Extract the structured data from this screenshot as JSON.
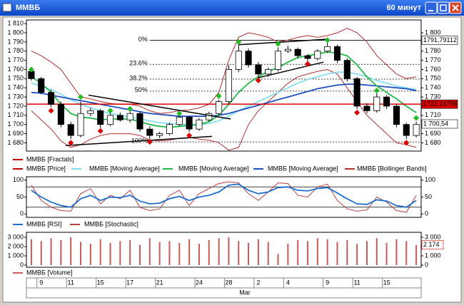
{
  "window": {
    "title": "ММВБ",
    "timeframe": "60 минут"
  },
  "chart_data": [
    {
      "type": "candlestick",
      "categories": [
        null,
        "9",
        null,
        null,
        "11",
        null,
        null,
        "15",
        null,
        null,
        "17",
        null,
        null,
        "21",
        null,
        null,
        null,
        "24",
        null,
        null,
        "28",
        null,
        null,
        "2",
        null,
        null,
        "4",
        null,
        null,
        null,
        "9",
        null,
        null,
        "11",
        null,
        null,
        "15",
        null,
        null,
        null
      ],
      "month_label": "Mar",
      "ylim": [
        1671,
        1814
      ],
      "yticks": [
        {
          "value": 1810,
          "label": "1 810"
        },
        {
          "value": 1800,
          "label": "1 800"
        },
        {
          "value": 1790,
          "label": "1 790"
        },
        {
          "value": 1780,
          "label": "1 780"
        },
        {
          "value": 1770,
          "label": "1 770"
        },
        {
          "value": 1760,
          "label": "1 760"
        },
        {
          "value": 1750,
          "label": "1 750"
        },
        {
          "value": 1740,
          "label": "1 740"
        },
        {
          "value": 1730,
          "label": "1 730"
        },
        {
          "value": 1720,
          "label": "1 720"
        },
        {
          "value": 1710,
          "label": "1 710"
        },
        {
          "value": 1700,
          "label": "1 700"
        },
        {
          "value": 1690,
          "label": "1 690"
        },
        {
          "value": 1680,
          "label": "1 680"
        }
      ],
      "y2lim": [
        1671,
        1814
      ],
      "y2ticks": [
        {
          "value": 1800,
          "label": "1 800"
        },
        {
          "value": 1790,
          "label": "1 790"
        },
        {
          "value": 1780,
          "label": "1 780"
        },
        {
          "value": 1770,
          "label": "1 770"
        },
        {
          "value": 1760,
          "label": "1 760"
        },
        {
          "value": 1750,
          "label": "1 750"
        },
        {
          "value": 1740,
          "label": "1 740"
        },
        {
          "value": 1730,
          "label": "1 730"
        },
        {
          "value": 1720,
          "label": "1 720"
        },
        {
          "value": 1710,
          "label": "1 710"
        },
        {
          "value": 1700,
          "label": "1 700"
        },
        {
          "value": 1690,
          "label": "1 690"
        },
        {
          "value": 1680,
          "label": "1 680"
        }
      ],
      "fractals": {
        "name": "ММВБ [Fractals]",
        "color": "#c00000",
        "up_color": "#22bb22",
        "down_color": "#dd0000",
        "up": [
          1760,
          null,
          null,
          null,
          null,
          1730,
          null,
          null,
          1715,
          null,
          1717,
          null,
          null,
          null,
          null,
          1712,
          null,
          null,
          null,
          1731,
          null,
          1790,
          null,
          null,
          null,
          1788,
          null,
          null,
          null,
          null,
          1792,
          null,
          null,
          null,
          null,
          1737,
          null,
          null,
          null,
          1707
        ],
        "down": [
          null,
          null,
          1715,
          null,
          1680,
          null,
          null,
          1693,
          null,
          null,
          null,
          null,
          1681,
          null,
          null,
          null,
          1688,
          null,
          null,
          null,
          null,
          null,
          null,
          1748,
          null,
          null,
          null,
          null,
          1766,
          null,
          null,
          null,
          null,
          1713,
          null,
          null,
          null,
          null,
          1680,
          null
        ]
      },
      "price": {
        "name": "ММВБ [Price]",
        "color": "#c00000",
        "open": [
          1758,
          1750,
          1735,
          1722,
          1700,
          1688,
          1712,
          1715,
          1700,
          1710,
          1705,
          1712,
          1695,
          1688,
          1690,
          1700,
          1708,
          1695,
          1705,
          1712,
          1725,
          1760,
          1780,
          1765,
          1755,
          1760,
          1780,
          1782,
          1775,
          1772,
          1780,
          1785,
          1770,
          1750,
          1720,
          1715,
          1730,
          1720,
          1700,
          1688
        ],
        "high": [
          1760,
          1752,
          1738,
          1725,
          1703,
          1725,
          1718,
          1717,
          1712,
          1713,
          1715,
          1714,
          1698,
          1692,
          1702,
          1710,
          1709,
          1707,
          1714,
          1727,
          1765,
          1790,
          1783,
          1768,
          1762,
          1784,
          1786,
          1784,
          1777,
          1782,
          1790,
          1787,
          1772,
          1752,
          1723,
          1734,
          1732,
          1722,
          1702,
          1703
        ],
        "low": [
          1748,
          1733,
          1719,
          1697,
          1684,
          1686,
          1709,
          1696,
          1698,
          1703,
          1702,
          1692,
          1684,
          1685,
          1688,
          1698,
          1692,
          1693,
          1703,
          1710,
          1722,
          1757,
          1762,
          1750,
          1752,
          1758,
          1778,
          1772,
          1768,
          1770,
          1778,
          1767,
          1747,
          1717,
          1712,
          1713,
          1717,
          1697,
          1684,
          1686
        ],
        "close": [
          1750,
          1735,
          1722,
          1700,
          1688,
          1712,
          1715,
          1700,
          1710,
          1705,
          1712,
          1695,
          1688,
          1690,
          1700,
          1708,
          1695,
          1705,
          1712,
          1725,
          1760,
          1780,
          1765,
          1755,
          1760,
          1780,
          1782,
          1775,
          1772,
          1780,
          1785,
          1770,
          1750,
          1720,
          1715,
          1730,
          1720,
          1700,
          1688,
          1700
        ]
      },
      "series": [
        {
          "name": "ММВБ [Moving Average]",
          "color": "#88ddee",
          "values": [
            1745,
            1742,
            1738,
            1733,
            1727,
            1722,
            1718,
            1715,
            1712,
            1710,
            1708,
            1706,
            1704,
            1702,
            1701,
            1700,
            1700,
            1700,
            1701,
            1704,
            1709,
            1715,
            1720,
            1725,
            1730,
            1735,
            1740,
            1745,
            1749,
            1752,
            1755,
            1757,
            1757,
            1755,
            1752,
            1748,
            1745,
            1742,
            1740,
            1738
          ]
        },
        {
          "name": "ММВБ [Moving Average]",
          "color": "#22b84a",
          "values": [
            1752,
            1745,
            1735,
            1722,
            1712,
            1708,
            1707,
            1705,
            1706,
            1706,
            1706,
            1703,
            1700,
            1698,
            1697,
            1698,
            1699,
            1700,
            1703,
            1710,
            1722,
            1735,
            1745,
            1752,
            1758,
            1762,
            1768,
            1773,
            1775,
            1777,
            1779,
            1778,
            1775,
            1765,
            1752,
            1742,
            1735,
            1728,
            1720,
            1713
          ]
        },
        {
          "name": "ММВБ [Moving Average]",
          "color": "#1f4fc0",
          "values": [
            1735,
            1734,
            1732,
            1730,
            1728,
            1726,
            1724,
            1722,
            1720,
            1718,
            1716,
            1714,
            1712,
            1711,
            1710,
            1709,
            1709,
            1709,
            1709,
            1710,
            1712,
            1715,
            1718,
            1721,
            1724,
            1727,
            1730,
            1733,
            1736,
            1739,
            1741,
            1743,
            1744,
            1744,
            1743,
            1742,
            1741,
            1740,
            1739,
            1737
          ]
        },
        {
          "name": "ММВБ [Bollinger Bands]",
          "color": "#b03030",
          "upper": [
            1780,
            1775,
            1768,
            1760,
            1745,
            1730,
            1728,
            1725,
            1723,
            1722,
            1722,
            1720,
            1715,
            1712,
            1713,
            1715,
            1716,
            1718,
            1722,
            1735,
            1770,
            1795,
            1800,
            1798,
            1795,
            1790,
            1792,
            1795,
            1797,
            1795,
            1797,
            1800,
            1805,
            1800,
            1790,
            1775,
            1765,
            1755,
            1750,
            1752
          ],
          "lower": [
            1715,
            1705,
            1695,
            1682,
            1675,
            1678,
            1684,
            1688,
            1690,
            1690,
            1690,
            1688,
            1683,
            1682,
            1683,
            1685,
            1686,
            1684,
            1683,
            1680,
            1672,
            1675,
            1700,
            1715,
            1725,
            1735,
            1745,
            1752,
            1755,
            1758,
            1760,
            1755,
            1740,
            1725,
            1710,
            1700,
            1690,
            1680,
            1678,
            1675
          ]
        }
      ],
      "trend_lines": [
        {
          "x": [
            3.5,
            18.3
          ],
          "y": [
            1677,
            1687
          ]
        },
        {
          "x": [
            5.8,
            20.2
          ],
          "y": [
            1732,
            1706
          ]
        },
        {
          "x": [
            21,
            30
          ],
          "y": [
            1787,
            1793
          ]
        },
        {
          "x": [
            23,
            29.6
          ],
          "y": [
            1751,
            1768
          ]
        }
      ],
      "fib_levels": [
        {
          "value": 1791.79,
          "label": "0%"
        },
        {
          "value": 1765.6,
          "label": "23.6%"
        },
        {
          "value": 1749.5,
          "label": "38.2%"
        },
        {
          "value": 1736.4,
          "label": "50%"
        },
        {
          "value": 1681,
          "label": "100%"
        }
      ],
      "fib_start": 12,
      "hline": {
        "value": 1722.16796,
        "color": "#dd0000"
      },
      "right_labels": [
        {
          "value": 1791.79112,
          "label": "1791,79112"
        },
        {
          "value": 1722.16796,
          "label": "1722,16796"
        },
        {
          "value": 1700.54,
          "label": "1 700,54"
        }
      ]
    },
    {
      "type": "line",
      "ylim": [
        -10,
        110
      ],
      "yticks": [
        100,
        50,
        0
      ],
      "y2lim": [
        -10,
        110
      ],
      "y2ticks": [
        100,
        50,
        0
      ],
      "levels": [
        80,
        20
      ],
      "series": [
        {
          "name": "ММВБ [RSI]",
          "color": "#1f6fd0",
          "values": [
            70,
            50,
            35,
            25,
            20,
            45,
            55,
            40,
            50,
            48,
            55,
            38,
            30,
            32,
            45,
            52,
            40,
            50,
            55,
            65,
            85,
            88,
            70,
            60,
            65,
            78,
            80,
            70,
            68,
            75,
            78,
            62,
            45,
            30,
            28,
            42,
            38,
            25,
            20,
            40
          ]
        },
        {
          "name": "ММВБ [Stochastic]",
          "color": "#b84040",
          "values": [
            85,
            40,
            20,
            10,
            8,
            60,
            75,
            30,
            55,
            45,
            70,
            20,
            10,
            15,
            55,
            70,
            25,
            60,
            75,
            90,
            95,
            92,
            60,
            40,
            65,
            92,
            90,
            55,
            50,
            80,
            88,
            40,
            15,
            8,
            12,
            50,
            35,
            10,
            5,
            55
          ]
        }
      ]
    },
    {
      "type": "bar",
      "ylim": [
        -230,
        3540
      ],
      "yticks": [
        {
          "value": 3000,
          "label": "3 000"
        },
        {
          "value": 2000,
          "label": "2 000"
        },
        {
          "value": 1000,
          "label": "1 000"
        },
        0
      ],
      "y2lim": [
        -230,
        3540
      ],
      "y2ticks": [
        {
          "value": 3000,
          "label": "3 000"
        },
        {
          "value": 2000,
          "label": "2 000"
        },
        {
          "value": 1000,
          "label": "1 000"
        },
        0
      ],
      "series": [
        {
          "name": "ММВБ [Volume]",
          "color": "#c85a5a",
          "values": [
            2800,
            2600,
            2900,
            2700,
            3000,
            2500,
            2300,
            2800,
            2400,
            2600,
            2700,
            2200,
            2900,
            2500,
            2600,
            2400,
            2800,
            2300,
            2700,
            2900,
            3000,
            2600,
            2400,
            2800,
            2500,
            1200,
            2300,
            2700,
            2600,
            2900,
            2800,
            2500,
            2700,
            2300,
            2600,
            2900,
            2400,
            2800,
            2600,
            2174
          ]
        }
      ],
      "last_label": {
        "value": 2174,
        "label": "2 174"
      }
    }
  ]
}
